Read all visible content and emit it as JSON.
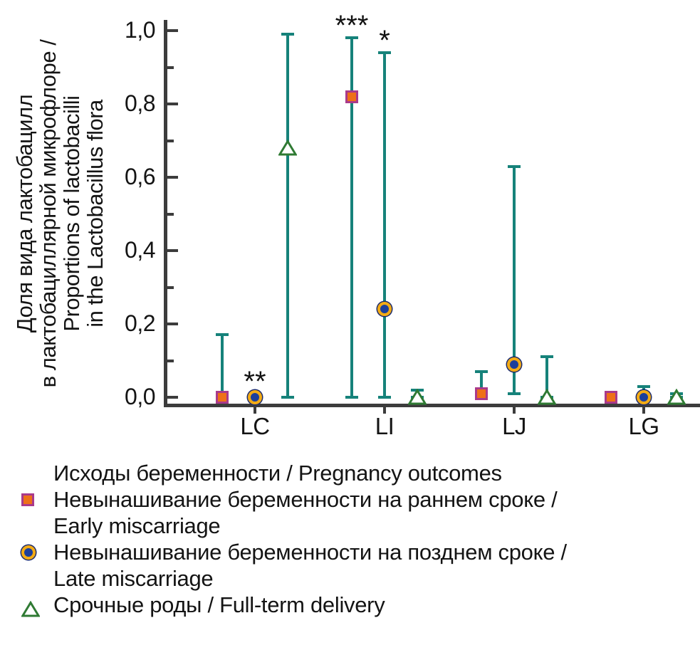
{
  "chart_data": {
    "type": "scatter",
    "title": "",
    "categories": [
      "LC",
      "LI",
      "LJ",
      "LG"
    ],
    "ylabel_lines": [
      "Доля вида лактобацилл",
      "в лактобациллярной микрофлоре /",
      "Proportions of lactobacilli",
      "in the Lactobacillus flora"
    ],
    "ylim": [
      0,
      1.0
    ],
    "ytick_values": [
      0,
      0.2,
      0.4,
      0.6,
      0.8,
      1.0
    ],
    "ytick_labels": [
      "0,0",
      "0,2",
      "0,4",
      "0,6",
      "0,8",
      "1,0"
    ],
    "minor_ytick_values": [
      0.1,
      0.3,
      0.5,
      0.7,
      0.9
    ],
    "grid": false,
    "decimal_separator": ",",
    "series": [
      {
        "name": "Невынашивание беременности на раннем сроке / Early miscarriage",
        "marker": "square",
        "points": [
          {
            "category": "LC",
            "value": 0.0,
            "lo": 0.0,
            "hi": 0.17,
            "sig": ""
          },
          {
            "category": "LI",
            "value": 0.82,
            "lo": 0.0,
            "hi": 0.98,
            "sig": "***"
          },
          {
            "category": "LJ",
            "value": 0.01,
            "lo": 0.01,
            "hi": 0.07,
            "sig": ""
          },
          {
            "category": "LG",
            "value": 0.0,
            "lo": 0.0,
            "hi": 0.01,
            "sig": ""
          }
        ]
      },
      {
        "name": "Невынашивание беременности на позднем сроке / Late miscarriage",
        "marker": "circle",
        "points": [
          {
            "category": "LC",
            "value": 0.0,
            "lo": 0.0,
            "hi": 0.01,
            "sig": "**"
          },
          {
            "category": "LI",
            "value": 0.24,
            "lo": 0.0,
            "hi": 0.94,
            "sig": "*"
          },
          {
            "category": "LJ",
            "value": 0.09,
            "lo": 0.01,
            "hi": 0.63,
            "sig": ""
          },
          {
            "category": "LG",
            "value": 0.0,
            "lo": 0.0,
            "hi": 0.03,
            "sig": ""
          }
        ]
      },
      {
        "name": "Срочные роды / Full-term delivery",
        "marker": "triangle",
        "points": [
          {
            "category": "LC",
            "value": 0.68,
            "lo": 0.0,
            "hi": 0.99,
            "sig": ""
          },
          {
            "category": "LI",
            "value": 0.0,
            "lo": 0.0,
            "hi": 0.02,
            "sig": ""
          },
          {
            "category": "LJ",
            "value": 0.0,
            "lo": 0.0,
            "hi": 0.11,
            "sig": ""
          },
          {
            "category": "LG",
            "value": 0.0,
            "lo": 0.0,
            "hi": 0.01,
            "sig": ""
          }
        ]
      }
    ],
    "legend_position": "bottom-left"
  },
  "legend": {
    "title": "Исходы беременности / Pregnancy outcomes",
    "items": [
      {
        "marker": "square-icon",
        "line1": "Невынашивание беременности на раннем сроке /",
        "line2": "Early miscarriage"
      },
      {
        "marker": "circle-icon",
        "line1": "Невынашивание беременности на позднем сроке /",
        "line2": "Late miscarriage"
      },
      {
        "marker": "triangle-icon",
        "line1": "Срочные роды / Full-term delivery",
        "line2": ""
      }
    ]
  },
  "colors": {
    "errorbar": "#16827a",
    "axis": "#3c3c3c",
    "text": "#141414",
    "significance": "#111111",
    "square_fill": "#ee7018",
    "square_border": "#a93a8b",
    "circle_fill": "#1c3f9c",
    "circle_ring": "#f3ab15",
    "circle_edge": "#1a2a6e",
    "triangle_stroke": "#2f7a33",
    "triangle_fill": "#ffffff"
  }
}
